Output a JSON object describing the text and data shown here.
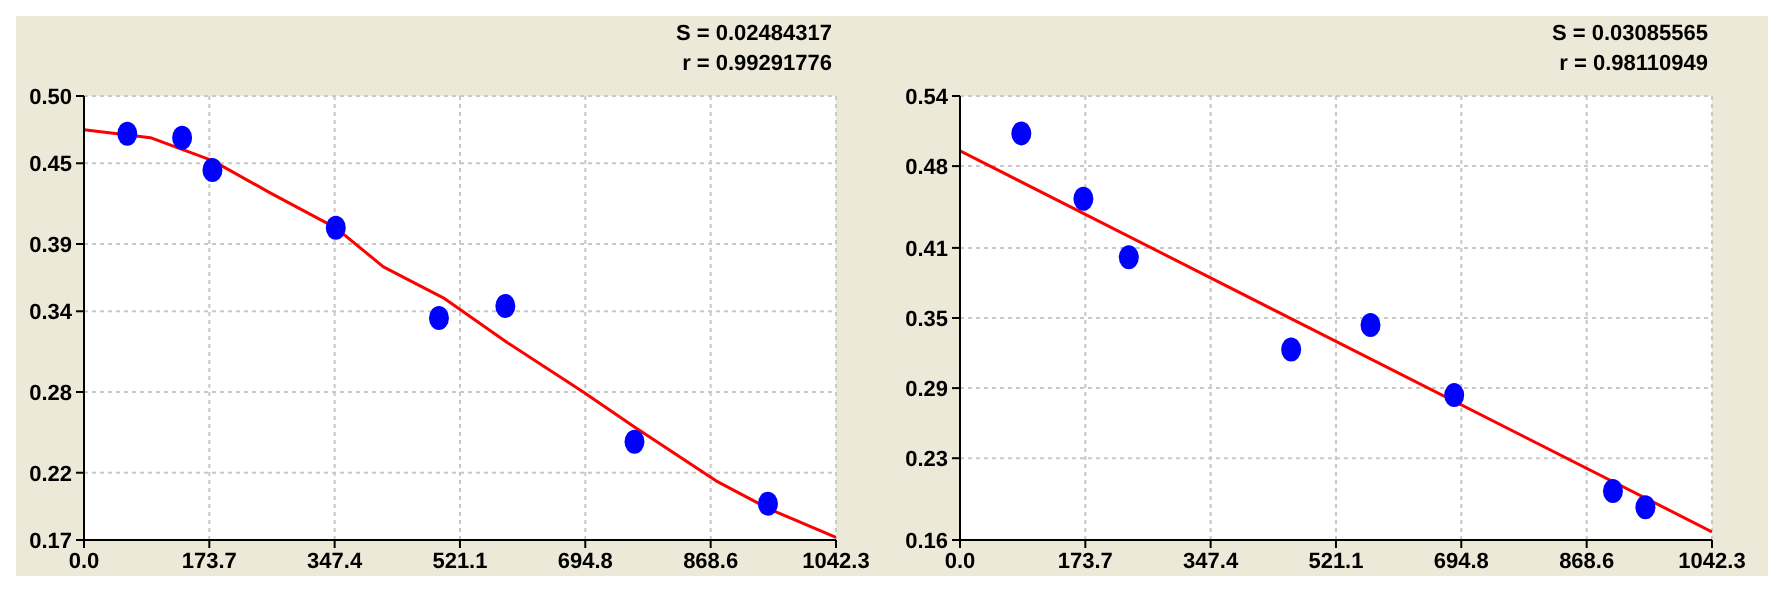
{
  "chart_data": [
    {
      "type": "scatter",
      "annotations": [
        "S = 0.02484317",
        "r = 0.99291776"
      ],
      "xlim": [
        0,
        1042.3
      ],
      "xticks": [
        {
          "value": 0,
          "label": "0.0"
        },
        173.7,
        347.4,
        521.1,
        694.8,
        868.6,
        1042.3
      ],
      "ylim": [
        0.17,
        0.5
      ],
      "yticks": [
        0.17,
        0.22,
        0.28,
        0.34,
        0.39,
        0.45,
        {
          "value": 0.5,
          "label": "0.50"
        }
      ],
      "grid": true,
      "marker": "circle",
      "series": [
        {
          "type": "scatter",
          "color": "#0000ff",
          "x": [
            60,
            136,
            178,
            349,
            492,
            584,
            763,
            948
          ],
          "values": [
            0.472,
            0.469,
            0.445,
            0.402,
            0.335,
            0.344,
            0.243,
            0.197
          ]
        },
        {
          "type": "line",
          "color": "#ff0000",
          "marker": "none",
          "x": [
            0,
            92,
            178,
            258,
            349,
            415,
            498,
            586,
            692,
            763,
            876,
            950,
            1042.3
          ],
          "values": [
            0.475,
            0.469,
            0.452,
            0.428,
            0.402,
            0.373,
            0.35,
            0.317,
            0.28,
            0.254,
            0.214,
            0.193,
            0.172
          ]
        }
      ]
    },
    {
      "type": "scatter",
      "annotations": [
        "S = 0.03085565",
        "r = 0.98110949"
      ],
      "xlim": [
        0,
        1042.3
      ],
      "xticks": [
        {
          "value": 0,
          "label": "0.0"
        },
        173.7,
        347.4,
        521.1,
        694.8,
        868.6,
        1042.3
      ],
      "ylim": [
        0.16,
        0.54
      ],
      "yticks": [
        0.16,
        0.23,
        0.29,
        0.35,
        0.41,
        0.48,
        0.54
      ],
      "grid": true,
      "marker": "circle",
      "series": [
        {
          "type": "scatter",
          "color": "#0000ff",
          "x": [
            85,
            171,
            234,
            459,
            569,
            685,
            905,
            950
          ],
          "values": [
            0.508,
            0.452,
            0.402,
            0.323,
            0.344,
            0.284,
            0.202,
            0.188
          ]
        },
        {
          "type": "line",
          "color": "#ff0000",
          "marker": "none",
          "x": [
            0,
            521.1,
            1042.3
          ],
          "values": [
            0.493,
            0.33,
            0.167
          ]
        }
      ]
    }
  ]
}
